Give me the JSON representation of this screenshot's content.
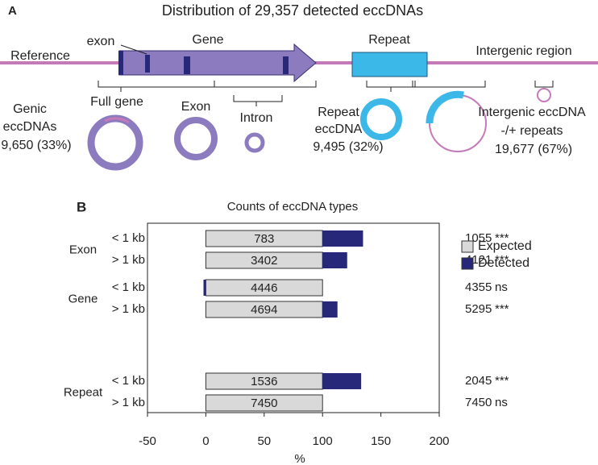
{
  "panel_a": {
    "label": "A",
    "title": "Distribution of 29,357 detected eccDNAs",
    "reference": "Reference",
    "exon": "exon",
    "gene": "Gene",
    "repeat": "Repeat",
    "intergenic_region": "Intergenic region",
    "full_gene": "Full gene",
    "exon_circle": "Exon",
    "intron": "Intron",
    "genic": [
      "Genic",
      "eccDNAs",
      "9,650 (33%)"
    ],
    "repeat_ecc": [
      "Repeat",
      "eccDNA",
      "9,495 (32%)"
    ],
    "intergenic": [
      "Intergenic eccDNA",
      "-/+ repeats",
      "19,677 (67%)"
    ]
  },
  "chart_data": {
    "type": "barh",
    "panel_label": "B",
    "title": "Counts of eccDNA types",
    "groups": [
      "Exon",
      "Gene",
      "Repeat"
    ],
    "categories": [
      "< 1 kb",
      "> 1 kb",
      "< 1 kb",
      "> 1 kb",
      "< 1 kb",
      "> 1 kb"
    ],
    "series": [
      {
        "name": "Expected",
        "color": "#d9d9d9",
        "values": [
          100,
          100,
          100,
          100,
          100,
          100
        ],
        "value_labels": [
          "783",
          "3402",
          "4446",
          "4694",
          "1536",
          "7450"
        ]
      },
      {
        "name": "Detected",
        "color": "#27287a",
        "values": [
          134.7,
          121.1,
          98,
          112.8,
          133.1,
          100
        ]
      }
    ],
    "detected_counts": [
      1055,
      4121,
      4355,
      5295,
      2045,
      7450
    ],
    "significance": [
      "***",
      "***",
      "ns",
      "***",
      "***",
      "ns"
    ],
    "xlim": [
      -50,
      200
    ],
    "xticks": [
      -50,
      0,
      50,
      100,
      150,
      200
    ],
    "xlabel": "%",
    "legend": "right"
  }
}
